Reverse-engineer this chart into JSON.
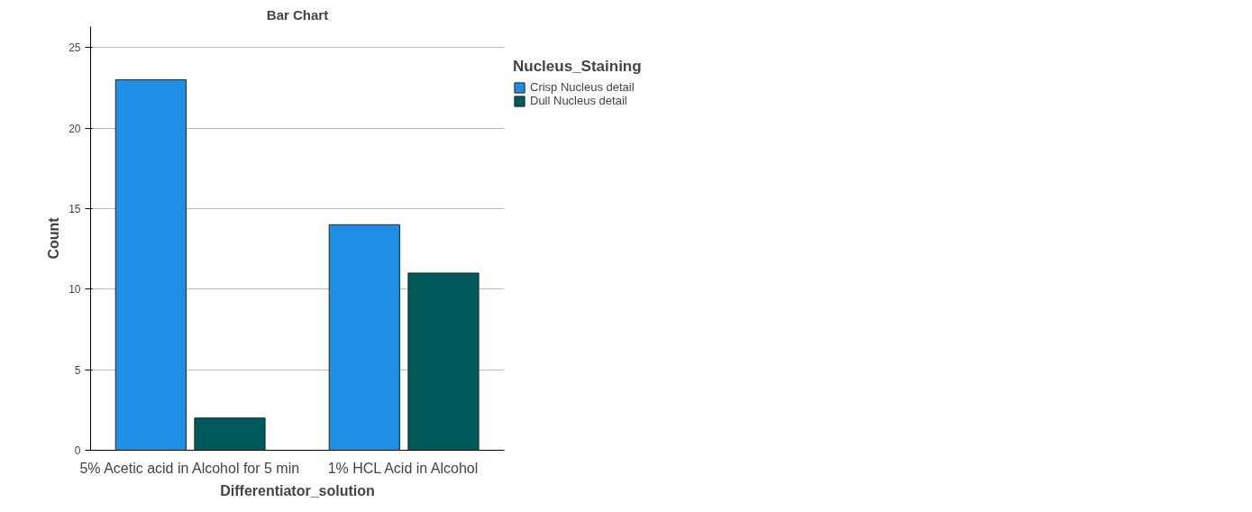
{
  "chart_data": {
    "type": "bar",
    "title": "Bar Chart",
    "xlabel": "Differentiator_solution",
    "ylabel": "Count",
    "legend_title": "Nucleus_Staining",
    "categories": [
      "5% Acetic acid in Alcohol for 5 min",
      "1% HCL Acid in Alcohol"
    ],
    "series": [
      {
        "name": "Crisp Nucleus detail",
        "color": "#1f8fe5",
        "values": [
          23,
          14
        ]
      },
      {
        "name": "Dull Nucleus detail",
        "color": "#005a5a",
        "values": [
          2,
          11
        ]
      }
    ],
    "ylim": [
      0,
      26.3
    ],
    "yticks": [
      0,
      5,
      10,
      15,
      20,
      25
    ],
    "grid": "y",
    "legend": "top right"
  }
}
